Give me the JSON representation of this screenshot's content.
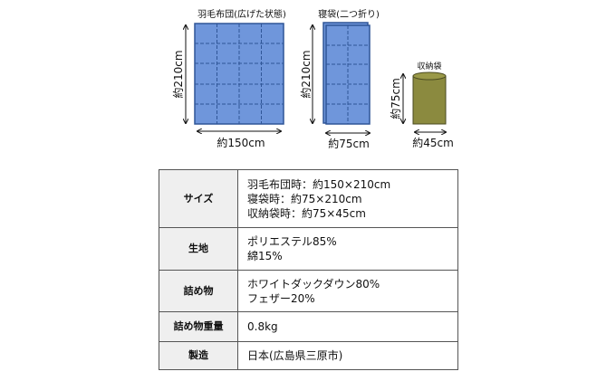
{
  "diagram": {
    "futon": {
      "title": "羽毛布団(広げた状態)",
      "height_label": "約210cm",
      "width_label": "約150cm"
    },
    "sleeping_bag": {
      "title": "寝袋(二つ折り)",
      "height_label": "約210cm",
      "width_label": "約75cm"
    },
    "storage_bag": {
      "title": "収納袋",
      "height_label": "約75cm",
      "width_label": "約45cm"
    },
    "colors": {
      "quilt_fill": "#6f96db",
      "quilt_stroke": "#2f5597",
      "bag_fill": "#8b8a3f"
    }
  },
  "spec_table": {
    "rows": [
      {
        "label": "サイズ",
        "lines": [
          "羽毛布団時：約150×210cm",
          "寝袋時：約75×210cm",
          "収納袋時：約75×45cm"
        ]
      },
      {
        "label": "生地",
        "lines": [
          "ポリエステル85%",
          "綿15%"
        ]
      },
      {
        "label": "詰め物",
        "lines": [
          "ホワイトダックダウン80%",
          "フェザー20%"
        ]
      },
      {
        "label": "詰め物重量",
        "lines": [
          "0.8kg"
        ]
      },
      {
        "label": "製造",
        "lines": [
          "日本(広島県三原市)"
        ]
      }
    ]
  }
}
